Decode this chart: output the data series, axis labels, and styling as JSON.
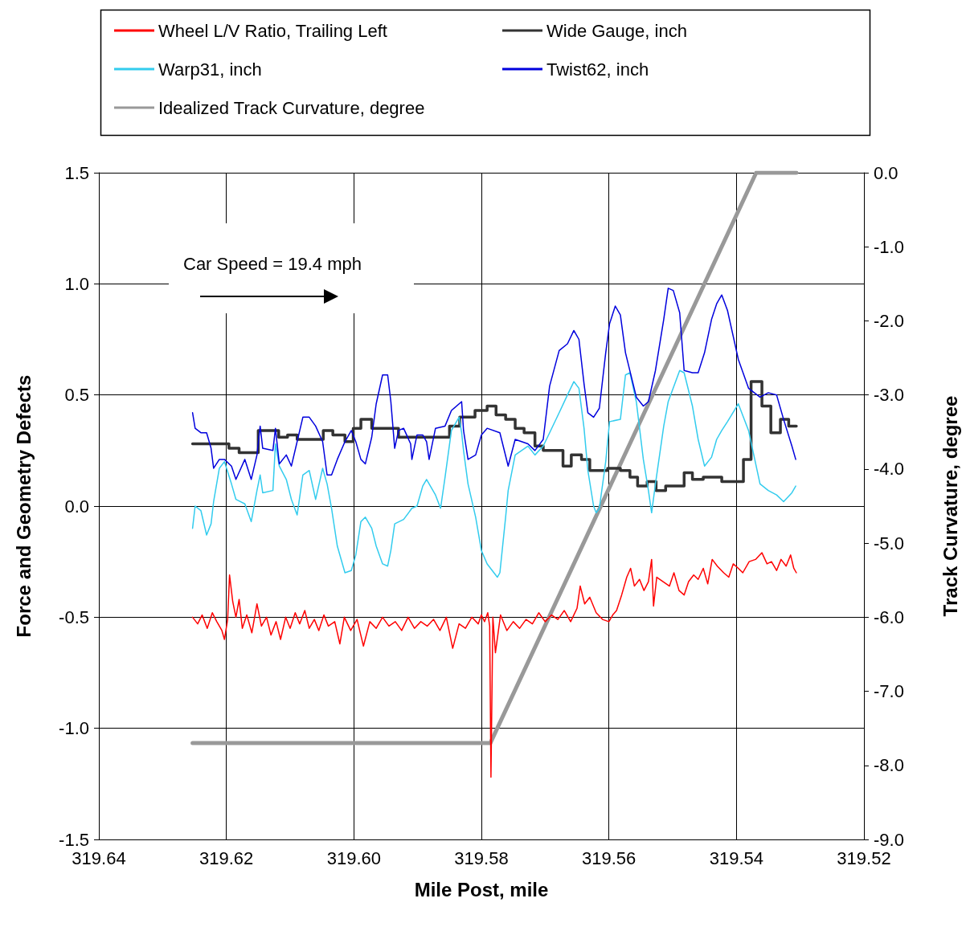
{
  "chart_data": {
    "type": "line",
    "xlabel": "Mile Post, mile",
    "ylabel": "Force and Geometry Defects",
    "y2label": "Track Curvature, degree",
    "annotations": [
      "Car Speed = 19.4 mph"
    ],
    "xlim": [
      319.64,
      319.52
    ],
    "xticks": [
      319.64,
      319.62,
      {
        "value": 319.6,
        "label": "319.60"
      },
      319.58,
      319.56,
      319.54,
      319.52
    ],
    "ylim": [
      -1.5,
      1.5
    ],
    "yticks": [
      -1.5,
      {
        "value": -1,
        "label": "-1.0"
      },
      -0.5,
      {
        "value": 0,
        "label": "0.0"
      },
      0.5,
      {
        "value": 1,
        "label": "1.0"
      },
      1.5
    ],
    "y2lim": [
      -9,
      0
    ],
    "y2ticks": [
      {
        "value": -9,
        "label": "-9.0"
      },
      {
        "value": -8,
        "label": "-8.0"
      },
      {
        "value": -7,
        "label": "-7.0"
      },
      {
        "value": -6,
        "label": "-6.0"
      },
      {
        "value": -5,
        "label": "-5.0"
      },
      {
        "value": -4,
        "label": "-4.0"
      },
      {
        "value": -3,
        "label": "-3.0"
      },
      {
        "value": -2,
        "label": "-2.0"
      },
      {
        "value": -1,
        "label": "-1.0"
      },
      {
        "value": 0,
        "label": "0.0"
      }
    ],
    "grid": true,
    "legend": "top",
    "marker": "none",
    "line_style": "solid",
    "series": [
      {
        "name": "Wheel L/V Ratio, Trailing Left",
        "color": "#ff0000",
        "x": [
          319.6253,
          319.6245,
          319.6238,
          319.623,
          319.6222,
          319.6215,
          319.6207,
          319.6203,
          319.6198,
          319.6195,
          319.619,
          319.6185,
          319.618,
          319.6175,
          319.6168,
          319.616,
          319.6152,
          319.6145,
          319.6137,
          319.613,
          319.6122,
          319.6115,
          319.6107,
          319.61,
          319.6092,
          319.6085,
          319.6077,
          319.607,
          319.6062,
          319.6055,
          319.6047,
          319.604,
          319.603,
          319.6022,
          319.6015,
          319.6005,
          319.5995,
          319.5985,
          319.5975,
          319.5965,
          319.5955,
          319.5945,
          319.5935,
          319.5925,
          319.5915,
          319.5905,
          319.5895,
          319.5885,
          319.5875,
          319.5865,
          319.5855,
          319.5845,
          319.5835,
          319.5825,
          319.5815,
          319.5805,
          319.58,
          319.5795,
          319.579,
          319.5787,
          319.5785,
          319.5782,
          319.5778,
          319.577,
          319.576,
          319.575,
          319.574,
          319.573,
          319.572,
          319.571,
          319.57,
          319.569,
          319.568,
          319.567,
          319.566,
          319.565,
          319.5645,
          319.5638,
          319.563,
          319.562,
          319.561,
          319.56,
          319.5594,
          319.5588,
          319.558,
          319.5572,
          319.5566,
          319.556,
          319.5552,
          319.5545,
          319.5538,
          319.5533,
          319.553,
          319.5525,
          319.5515,
          319.5505,
          319.5498,
          319.549,
          319.5482,
          319.5475,
          319.5467,
          319.546,
          319.5452,
          319.5445,
          319.5438,
          319.543,
          319.542,
          319.5412,
          319.5405,
          319.5397,
          319.539,
          319.538,
          319.537,
          319.536,
          319.5352,
          319.5345,
          319.5337,
          319.533,
          319.5322,
          319.5315,
          319.531,
          319.5306
        ],
        "values": [
          -0.5,
          -0.53,
          -0.49,
          -0.55,
          -0.48,
          -0.52,
          -0.56,
          -0.6,
          -0.51,
          -0.31,
          -0.43,
          -0.5,
          -0.42,
          -0.55,
          -0.49,
          -0.57,
          -0.44,
          -0.54,
          -0.5,
          -0.58,
          -0.52,
          -0.6,
          -0.5,
          -0.55,
          -0.48,
          -0.53,
          -0.47,
          -0.55,
          -0.51,
          -0.56,
          -0.49,
          -0.54,
          -0.52,
          -0.62,
          -0.5,
          -0.56,
          -0.51,
          -0.63,
          -0.52,
          -0.55,
          -0.5,
          -0.54,
          -0.52,
          -0.56,
          -0.5,
          -0.55,
          -0.52,
          -0.54,
          -0.51,
          -0.56,
          -0.5,
          -0.64,
          -0.53,
          -0.55,
          -0.5,
          -0.53,
          -0.49,
          -0.52,
          -0.48,
          -0.54,
          -1.22,
          -0.5,
          -0.66,
          -0.49,
          -0.56,
          -0.52,
          -0.55,
          -0.51,
          -0.53,
          -0.48,
          -0.52,
          -0.49,
          -0.51,
          -0.47,
          -0.52,
          -0.46,
          -0.36,
          -0.44,
          -0.41,
          -0.48,
          -0.51,
          -0.52,
          -0.49,
          -0.47,
          -0.4,
          -0.32,
          -0.28,
          -0.36,
          -0.33,
          -0.38,
          -0.34,
          -0.24,
          -0.45,
          -0.32,
          -0.34,
          -0.36,
          -0.3,
          -0.38,
          -0.4,
          -0.34,
          -0.31,
          -0.33,
          -0.28,
          -0.35,
          -0.24,
          -0.27,
          -0.3,
          -0.32,
          -0.26,
          -0.28,
          -0.3,
          -0.25,
          -0.24,
          -0.21,
          -0.26,
          -0.25,
          -0.29,
          -0.24,
          -0.27,
          -0.22,
          -0.28,
          -0.3
        ]
      },
      {
        "name": "Wide Gauge, inch",
        "color": "#333333",
        "type": "step",
        "x": [
          319.6253,
          319.6196,
          319.618,
          319.615,
          319.6118,
          319.6104,
          319.6089,
          319.6048,
          319.6033,
          319.6014,
          319.6001,
          319.5989,
          319.5972,
          319.593,
          319.585,
          319.5834,
          319.581,
          319.5791,
          319.5777,
          319.5762,
          319.5747,
          319.5733,
          319.5716,
          319.5703,
          319.5672,
          319.5659,
          319.5643,
          319.563,
          319.5602,
          319.5582,
          319.5567,
          319.5555,
          319.554,
          319.5526,
          319.5511,
          319.5482,
          319.5469,
          319.5452,
          319.5423,
          319.5389,
          319.5377,
          319.536,
          319.5346,
          319.5331,
          319.5318,
          319.5306
        ],
        "values": [
          0.28,
          0.26,
          0.24,
          0.34,
          0.31,
          0.32,
          0.3,
          0.34,
          0.32,
          0.29,
          0.35,
          0.39,
          0.35,
          0.31,
          0.36,
          0.4,
          0.43,
          0.45,
          0.41,
          0.39,
          0.35,
          0.33,
          0.27,
          0.25,
          0.18,
          0.23,
          0.21,
          0.16,
          0.17,
          0.16,
          0.13,
          0.09,
          0.11,
          0.07,
          0.09,
          0.15,
          0.12,
          0.13,
          0.11,
          0.21,
          0.56,
          0.45,
          0.33,
          0.39,
          0.36,
          0.36
        ]
      },
      {
        "name": "Warp31, inch",
        "color": "#33ccee",
        "x": [
          319.6253,
          319.6249,
          319.624,
          319.6231,
          319.6224,
          319.622,
          319.6211,
          319.6203,
          319.6192,
          319.6185,
          319.6171,
          319.6161,
          319.6152,
          319.6147,
          319.6143,
          319.6127,
          319.6123,
          319.6117,
          319.6106,
          319.6098,
          319.6089,
          319.608,
          319.607,
          319.606,
          319.6049,
          319.6042,
          319.6035,
          319.6026,
          319.6014,
          319.6004,
          319.5997,
          319.5989,
          319.5982,
          319.5972,
          319.5965,
          319.5955,
          319.5947,
          319.5942,
          319.5936,
          319.5922,
          319.5909,
          319.5901,
          319.5892,
          319.5886,
          319.5882,
          319.5872,
          319.5864,
          319.5857,
          319.5847,
          319.5835,
          319.5831,
          319.5828,
          319.5821,
          319.5809,
          319.58,
          319.5791,
          319.5775,
          319.5771,
          319.5762,
          319.5758,
          319.5747,
          319.5727,
          319.5716,
          319.5703,
          319.5693,
          319.5678,
          319.5665,
          319.5655,
          319.5647,
          319.5639,
          319.5633,
          319.5624,
          319.562,
          319.5615,
          319.5605,
          319.5599,
          319.5582,
          319.5574,
          319.5567,
          319.5557,
          319.5546,
          319.5538,
          319.5533,
          319.5527,
          319.5514,
          319.5507,
          319.5489,
          319.5482,
          319.5469,
          319.546,
          319.545,
          319.5439,
          319.5431,
          319.5423,
          319.5414,
          319.5397,
          319.5381,
          319.5363,
          319.535,
          319.5337,
          319.5326,
          319.5313,
          319.5307
        ],
        "values": [
          -0.1,
          0.0,
          -0.02,
          -0.13,
          -0.08,
          0.02,
          0.17,
          0.2,
          0.1,
          0.03,
          0.01,
          -0.07,
          0.07,
          0.14,
          0.06,
          0.07,
          0.28,
          0.18,
          0.12,
          0.03,
          -0.04,
          0.14,
          0.16,
          0.03,
          0.17,
          0.1,
          -0.01,
          -0.18,
          -0.3,
          -0.29,
          -0.22,
          -0.07,
          -0.05,
          -0.1,
          -0.18,
          -0.26,
          -0.27,
          -0.2,
          -0.08,
          -0.06,
          -0.01,
          0.0,
          0.09,
          0.12,
          0.1,
          0.05,
          -0.01,
          0.13,
          0.34,
          0.4,
          0.33,
          0.25,
          0.1,
          -0.05,
          -0.2,
          -0.26,
          -0.32,
          -0.3,
          -0.05,
          0.07,
          0.23,
          0.27,
          0.23,
          0.27,
          0.33,
          0.42,
          0.5,
          0.56,
          0.53,
          0.35,
          0.16,
          0.0,
          -0.03,
          -0.01,
          0.2,
          0.38,
          0.39,
          0.59,
          0.6,
          0.47,
          0.21,
          0.07,
          -0.03,
          0.1,
          0.36,
          0.47,
          0.61,
          0.6,
          0.45,
          0.3,
          0.18,
          0.22,
          0.3,
          0.34,
          0.38,
          0.46,
          0.34,
          0.1,
          0.07,
          0.05,
          0.02,
          0.06,
          0.09
        ]
      },
      {
        "name": "Twist62, inch",
        "color": "#0000dd",
        "x": [
          319.6253,
          319.6249,
          319.624,
          319.6231,
          319.6224,
          319.622,
          319.6211,
          319.6203,
          319.6192,
          319.6185,
          319.6171,
          319.6161,
          319.6152,
          319.6147,
          319.6143,
          319.6127,
          319.6123,
          319.6117,
          319.6106,
          319.6098,
          319.6089,
          319.608,
          319.607,
          319.606,
          319.6049,
          319.6042,
          319.6035,
          319.6026,
          319.6014,
          319.6004,
          319.5997,
          319.5989,
          319.5982,
          319.5972,
          319.5965,
          319.5955,
          319.5947,
          319.5942,
          319.5936,
          319.593,
          319.5922,
          319.5911,
          319.5909,
          319.5901,
          319.5892,
          319.5886,
          319.5882,
          319.5872,
          319.5857,
          319.5847,
          319.5831,
          319.5828,
          319.5821,
          319.5809,
          319.58,
          319.5791,
          319.5771,
          319.5758,
          319.5747,
          319.5727,
          319.5716,
          319.5703,
          319.5693,
          319.5678,
          319.5665,
          319.5655,
          319.5647,
          319.5639,
          319.5633,
          319.5624,
          319.5615,
          319.5605,
          319.5599,
          319.559,
          319.5582,
          319.5574,
          319.5557,
          319.5546,
          319.5538,
          319.5527,
          319.5514,
          319.5507,
          319.5499,
          319.5489,
          319.5482,
          319.5469,
          319.546,
          319.545,
          319.5439,
          319.5431,
          319.5423,
          319.5414,
          319.5397,
          319.5381,
          319.5363,
          319.535,
          319.5337,
          319.5326,
          319.5313,
          319.5307
        ],
        "values": [
          0.42,
          0.35,
          0.33,
          0.33,
          0.26,
          0.17,
          0.21,
          0.21,
          0.18,
          0.12,
          0.21,
          0.12,
          0.23,
          0.36,
          0.26,
          0.25,
          0.35,
          0.19,
          0.23,
          0.18,
          0.29,
          0.4,
          0.4,
          0.36,
          0.29,
          0.14,
          0.14,
          0.21,
          0.29,
          0.34,
          0.29,
          0.21,
          0.19,
          0.31,
          0.46,
          0.59,
          0.59,
          0.47,
          0.26,
          0.34,
          0.35,
          0.28,
          0.21,
          0.32,
          0.32,
          0.29,
          0.21,
          0.35,
          0.36,
          0.43,
          0.47,
          0.34,
          0.21,
          0.23,
          0.32,
          0.35,
          0.33,
          0.18,
          0.3,
          0.28,
          0.25,
          0.3,
          0.54,
          0.7,
          0.73,
          0.79,
          0.75,
          0.55,
          0.42,
          0.4,
          0.44,
          0.69,
          0.82,
          0.9,
          0.86,
          0.69,
          0.49,
          0.45,
          0.47,
          0.61,
          0.84,
          0.98,
          0.97,
          0.87,
          0.61,
          0.6,
          0.6,
          0.69,
          0.84,
          0.91,
          0.95,
          0.88,
          0.66,
          0.53,
          0.49,
          0.51,
          0.5,
          0.39,
          0.27,
          0.21
        ]
      },
      {
        "name": "Idealized Track Curvature, degree",
        "color": "#999999",
        "axis": "y2",
        "x": [
          319.6253,
          319.5786,
          319.5369,
          319.5306
        ],
        "values": [
          -7.7,
          -7.7,
          0,
          0
        ]
      }
    ]
  }
}
